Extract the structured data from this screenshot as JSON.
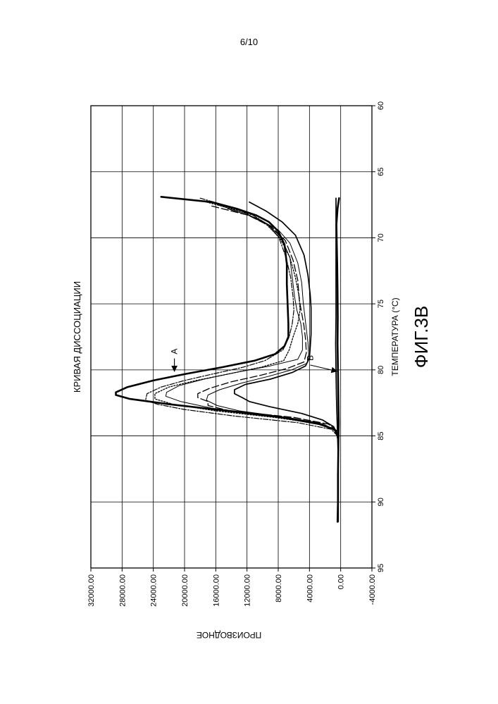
{
  "page": {
    "number": "6/10"
  },
  "figure": {
    "caption": "ФИГ.3В"
  },
  "chart_data": {
    "type": "line",
    "title": "КРИВАЯ ДИССОЦИАЦИИ",
    "xlabel": "ТЕМПЕРАТУРА (°C)",
    "ylabel": "ПРОИЗВОДНОЕ",
    "xlim": [
      60,
      95
    ],
    "ylim": [
      -4000,
      32000
    ],
    "xticks": [
      "60",
      "65",
      "70",
      "75",
      "80",
      "85",
      "90",
      "95"
    ],
    "yticks": [
      "-4000.00",
      "0.00",
      "4000.00",
      "8000.00",
      "12000.00",
      "16000.00",
      "20000.00",
      "24000.00",
      "28000.00",
      "32000.00"
    ],
    "grid": true,
    "orientation": "rotated-90-ccw",
    "annotations": [
      {
        "label": "A",
        "x": 78.6,
        "y": 21300,
        "arrow_to": [
          80.1,
          21300
        ]
      },
      {
        "label": "B",
        "x": 79.1,
        "y": 3900,
        "arrow_to": [
          80.1,
          500
        ]
      }
    ],
    "series": [
      {
        "style": "thick",
        "x": [
          66.9,
          67.3,
          67.8,
          68.3,
          68.8,
          69.5,
          70.5,
          72,
          73.5,
          75,
          76.5,
          77.5,
          78.2,
          78.8,
          79.3,
          79.8,
          80.3,
          80.8,
          81.3,
          81.7,
          81.9,
          82.2,
          82.6,
          83.1,
          83.6,
          84.1,
          84.5,
          85
        ],
        "y": [
          23000,
          16500,
          13300,
          10800,
          9200,
          8000,
          7200,
          6900,
          6900,
          6800,
          6700,
          6700,
          7200,
          8400,
          11000,
          15200,
          19800,
          24000,
          27300,
          28800,
          28800,
          27000,
          22000,
          14500,
          7500,
          2800,
          800,
          400
        ]
      },
      {
        "style": "dash-dot",
        "x": [
          67,
          67.6,
          68.3,
          69,
          70,
          71.5,
          73,
          74.5,
          75.5,
          76.5,
          77.5,
          78.5,
          79.3,
          79.8,
          80.3,
          80.8,
          81.3,
          81.8,
          82.3,
          82.6,
          83,
          83.5,
          84,
          84.5,
          85
        ],
        "y": [
          18000,
          14500,
          11200,
          9300,
          7900,
          7000,
          6400,
          6100,
          6000,
          6200,
          6600,
          7400,
          9700,
          12500,
          16300,
          20000,
          23000,
          24800,
          25000,
          23500,
          20000,
          13500,
          5500,
          1200,
          400
        ]
      },
      {
        "style": "dotted",
        "x": [
          67.3,
          68,
          69,
          70,
          71.5,
          73,
          74.5,
          75.5,
          76.5,
          77.5,
          78.5,
          79.3,
          79.8,
          80.3,
          80.8,
          81.3,
          81.8,
          82.2,
          82.6,
          83.1,
          83.6,
          84.1,
          84.6,
          85
        ],
        "y": [
          17200,
          12600,
          9500,
          7800,
          6500,
          5800,
          5300,
          5200,
          5500,
          6100,
          6600,
          7300,
          10200,
          14300,
          18500,
          22000,
          23800,
          23800,
          21500,
          16000,
          8500,
          2500,
          700,
          400
        ]
      },
      {
        "style": "thin",
        "x": [
          67.5,
          68.2,
          69,
          70,
          71.5,
          73,
          74.5,
          75.5,
          76.5,
          77.5,
          78.5,
          79.2,
          79.7,
          80.2,
          80.7,
          81.2,
          81.7,
          82,
          82.4,
          82.9,
          83.4,
          84,
          84.6,
          85
        ],
        "y": [
          15800,
          12000,
          9300,
          7600,
          6500,
          6200,
          5900,
          5600,
          5100,
          4900,
          4900,
          5500,
          9000,
          13500,
          17500,
          20700,
          22300,
          22400,
          20500,
          16500,
          9500,
          2800,
          700,
          400
        ]
      },
      {
        "style": "long-dash",
        "x": [
          67.6,
          68.3,
          69.2,
          70.2,
          71.7,
          73.2,
          74.7,
          75.7,
          76.7,
          77.7,
          78.7,
          79.4,
          79.9,
          80.4,
          80.9,
          81.4,
          81.8,
          82.1,
          82.4,
          82.7,
          83.1,
          83.6,
          84.1,
          84.6,
          85
        ],
        "y": [
          16500,
          11800,
          8800,
          7100,
          6100,
          5500,
          5300,
          5000,
          4700,
          4500,
          4400,
          4700,
          6900,
          10200,
          14000,
          16800,
          18300,
          18300,
          17000,
          17000,
          14200,
          6000,
          1600,
          500,
          400
        ]
      },
      {
        "style": "thin",
        "x": [
          67.8,
          68.5,
          69.4,
          70.4,
          71.9,
          73.4,
          74.9,
          75.9,
          76.9,
          77.9,
          78.8,
          79.5,
          80,
          80.5,
          81,
          81.5,
          81.9,
          82.3,
          82.7,
          83.1,
          83.6,
          84.1,
          84.6,
          85
        ],
        "y": [
          14500,
          10800,
          8000,
          6500,
          5500,
          5000,
          4800,
          4600,
          4400,
          4200,
          4100,
          4300,
          6300,
          9300,
          12700,
          15500,
          17000,
          17200,
          15800,
          13000,
          6800,
          2200,
          600,
          400
        ]
      },
      {
        "style": "medium",
        "x": [
          67.3,
          68,
          68.8,
          69.8,
          71.3,
          72.8,
          74.3,
          75.3,
          76.3,
          77.3,
          78.3,
          79.1,
          79.7,
          80.2,
          80.7,
          81.1,
          81.5,
          81.8,
          82.1,
          82.4,
          82.8,
          83.3,
          83.8,
          84.3,
          84.8,
          85.2
        ],
        "y": [
          11700,
          9500,
          7500,
          5800,
          4700,
          4200,
          3900,
          3800,
          3800,
          3800,
          3900,
          4000,
          4500,
          6200,
          9000,
          12200,
          13600,
          13600,
          12600,
          11700,
          9000,
          5000,
          2300,
          900,
          500,
          400
        ]
      },
      {
        "style": "thick",
        "x": [
          67,
          67.8,
          69,
          70.5,
          72,
          74,
          76,
          78,
          80,
          82,
          84,
          86,
          88,
          90,
          91.5
        ],
        "y": [
          200,
          400,
          550,
          500,
          450,
          400,
          380,
          400,
          350,
          300,
          250,
          300,
          350,
          350,
          400
        ]
      },
      {
        "style": "medium",
        "x": [
          67,
          68,
          70,
          72,
          74,
          76,
          78,
          80,
          82,
          84,
          86,
          88,
          90,
          91.5
        ],
        "y": [
          600,
          600,
          600,
          600,
          600,
          600,
          650,
          600,
          550,
          450,
          350,
          300,
          300,
          300
        ]
      }
    ]
  }
}
